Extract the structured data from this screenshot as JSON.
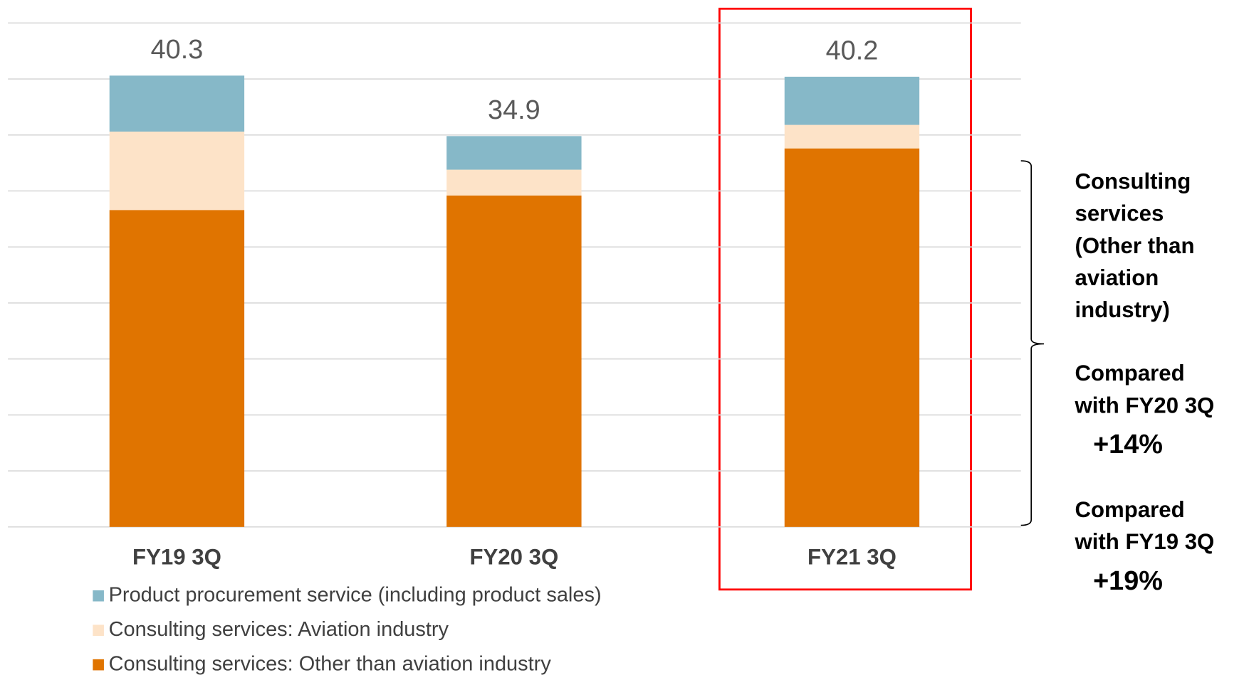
{
  "chart_data": {
    "type": "stacked_bar",
    "categories": [
      "FY19 3Q",
      "FY20 3Q",
      "FY21 3Q"
    ],
    "series": [
      {
        "name": "Consulting services: Other than aviation industry",
        "color": "#e07400",
        "values": [
          28.3,
          29.6,
          33.8
        ]
      },
      {
        "name": "Consulting services: Aviation industry",
        "color": "#fde3c8",
        "values": [
          7.0,
          2.3,
          2.1
        ]
      },
      {
        "name": "Product procurement service (including product sales)",
        "color": "#86b8c8",
        "values": [
          5.0,
          3.0,
          4.3
        ]
      }
    ],
    "totals": [
      40.3,
      34.9,
      40.2
    ],
    "ylim": [
      0,
      45
    ],
    "yticks": [
      0,
      5,
      10,
      15,
      20,
      25,
      30,
      35,
      40,
      45
    ],
    "grid": true,
    "annotation": {
      "heading": [
        "Consulting",
        "services",
        "(Other than",
        "aviation",
        "industry)"
      ],
      "comparisons": [
        {
          "text": [
            "Compared",
            "with FY20 3Q"
          ],
          "change": "+14%"
        },
        {
          "text": [
            "Compared",
            "with FY19 3Q"
          ],
          "change": "+19%"
        }
      ]
    }
  }
}
